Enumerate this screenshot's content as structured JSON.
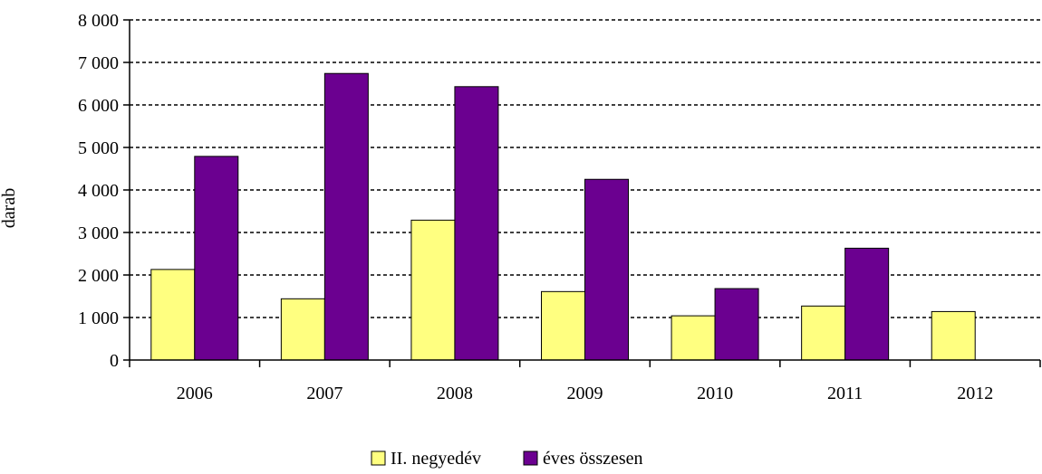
{
  "chart_data": {
    "type": "bar",
    "title": "",
    "xlabel": "",
    "ylabel": "darab",
    "categories": [
      "2006",
      "2007",
      "2008",
      "2009",
      "2010",
      "2011",
      "2012"
    ],
    "series": [
      {
        "name": "II. negyedév",
        "color": "#ffff80",
        "values": [
          2130,
          1440,
          3290,
          1610,
          1040,
          1270,
          1140
        ]
      },
      {
        "name": "éves összesen",
        "color": "#6b0090",
        "values": [
          4790,
          6740,
          6430,
          4250,
          1680,
          2630,
          null
        ]
      }
    ],
    "ylim": [
      0,
      8000
    ],
    "yticks": [
      0,
      1000,
      2000,
      3000,
      4000,
      5000,
      6000,
      7000,
      8000
    ],
    "ytick_labels": [
      "0",
      "1 000",
      "2 000",
      "3 000",
      "4 000",
      "5 000",
      "6 000",
      "7 000",
      "8 000"
    ],
    "grid": true,
    "legend_position": "bottom-center"
  }
}
